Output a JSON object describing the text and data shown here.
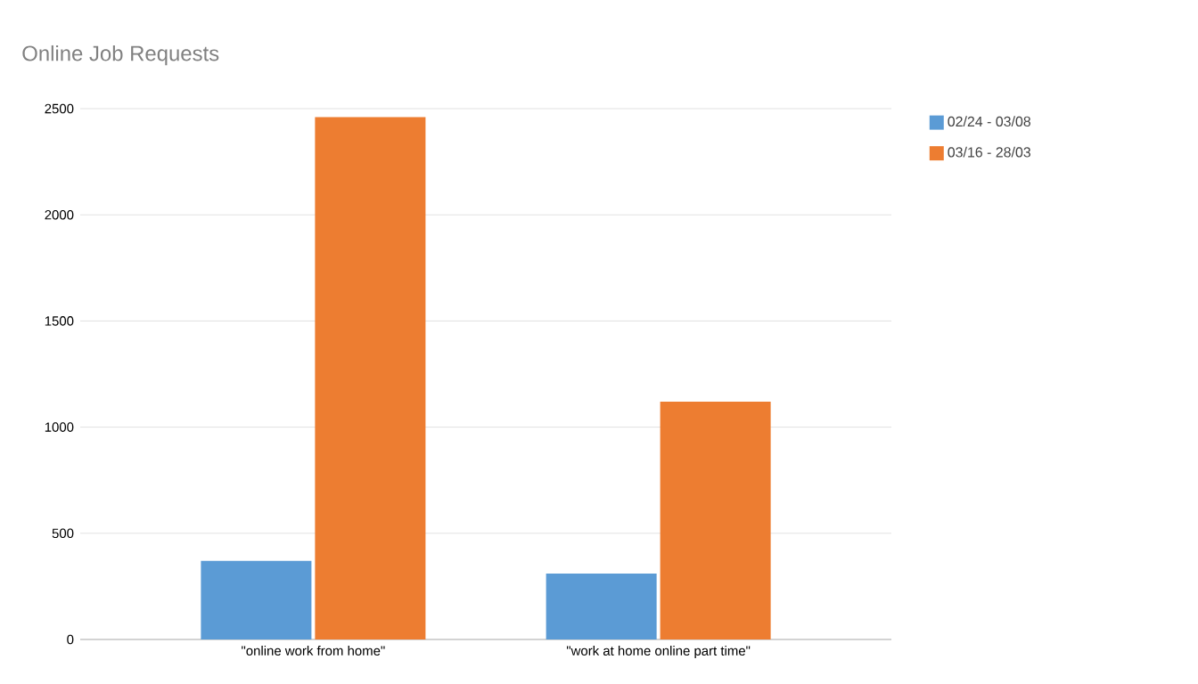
{
  "chart_data": {
    "type": "bar",
    "title": "Online Job Requests",
    "categories": [
      "\"online work from home\"",
      "\"work at home online part time\""
    ],
    "series": [
      {
        "name": "02/24 - 03/08",
        "color": "#5b9bd5",
        "values": [
          370,
          310
        ]
      },
      {
        "name": "03/16 - 28/03",
        "color": "#ed7d31",
        "values": [
          2460,
          1120
        ]
      }
    ],
    "ylim": [
      0,
      2500
    ],
    "yticks": [
      0,
      500,
      1000,
      1500,
      2000,
      2500
    ],
    "grid": "y",
    "legend": "top right"
  }
}
